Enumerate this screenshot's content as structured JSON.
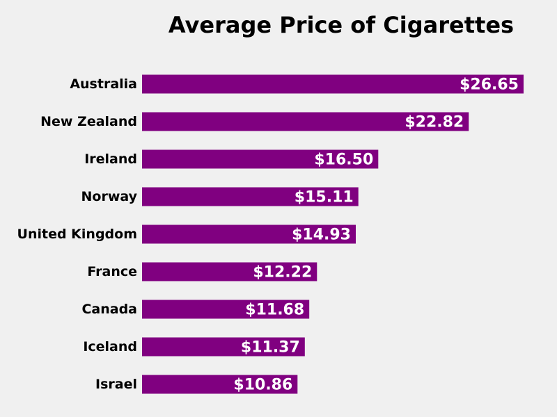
{
  "chart_data": {
    "type": "bar",
    "orientation": "horizontal",
    "title": "Average Price of Cigarettes",
    "xlabel": "",
    "ylabel": "",
    "categories": [
      "Australia",
      "New Zealand",
      "Ireland",
      "Norway",
      "United Kingdom",
      "France",
      "Canada",
      "Iceland",
      "Israel"
    ],
    "values": [
      26.65,
      22.82,
      16.5,
      15.11,
      14.93,
      12.22,
      11.68,
      11.37,
      10.86
    ],
    "value_labels": [
      "$26.65",
      "$22.82",
      "$16.50",
      "$15.11",
      "$14.93",
      "$12.22",
      "$11.68",
      "$11.37",
      "$10.86"
    ],
    "xlim": [
      0,
      26.65
    ],
    "grid": false,
    "legend": "none",
    "bar_color": "#800080",
    "background_color": "#f0f0f0",
    "value_label_color": "#ffffff"
  }
}
